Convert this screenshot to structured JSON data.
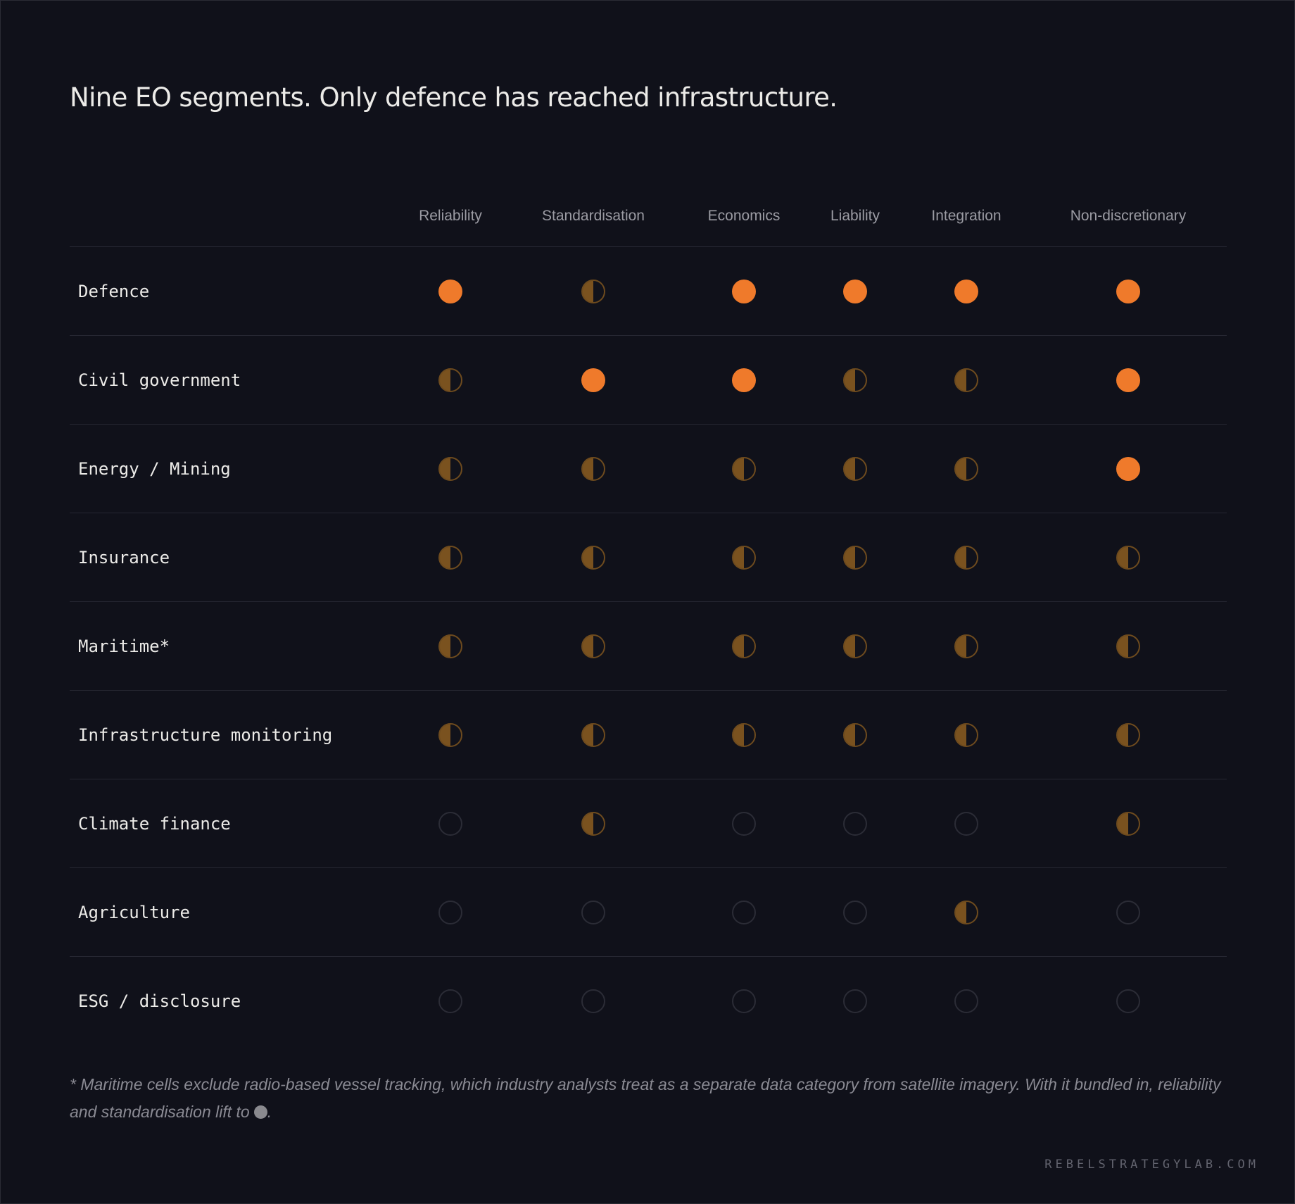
{
  "title": "Nine EO segments. Only defence has reached infrastructure.",
  "chart_data": {
    "type": "table",
    "title": "Nine EO segments. Only defence has reached infrastructure.",
    "columns": [
      "Reliability",
      "Standardisation",
      "Economics",
      "Liability",
      "Integration",
      "Non-discretionary"
    ],
    "levels": [
      "none",
      "partial",
      "full"
    ],
    "rows": [
      {
        "label": "Defence",
        "values": [
          "full",
          "partial",
          "full",
          "full",
          "full",
          "full"
        ]
      },
      {
        "label": "Civil government",
        "values": [
          "partial",
          "full",
          "full",
          "partial",
          "partial",
          "full"
        ]
      },
      {
        "label": "Energy / Mining",
        "values": [
          "partial",
          "partial",
          "partial",
          "partial",
          "partial",
          "full"
        ]
      },
      {
        "label": "Insurance",
        "values": [
          "partial",
          "partial",
          "partial",
          "partial",
          "partial",
          "partial"
        ]
      },
      {
        "label": "Maritime*",
        "values": [
          "partial",
          "partial",
          "partial",
          "partial",
          "partial",
          "partial"
        ]
      },
      {
        "label": "Infrastructure monitoring",
        "values": [
          "partial",
          "partial",
          "partial",
          "partial",
          "partial",
          "partial"
        ]
      },
      {
        "label": "Climate finance",
        "values": [
          "none",
          "partial",
          "none",
          "none",
          "none",
          "partial"
        ]
      },
      {
        "label": "Agriculture",
        "values": [
          "none",
          "none",
          "none",
          "none",
          "partial",
          "none"
        ]
      },
      {
        "label": "ESG / disclosure",
        "values": [
          "none",
          "none",
          "none",
          "none",
          "none",
          "none"
        ]
      }
    ],
    "colors": {
      "full": "#ef7a2b",
      "partial": "#7a521f",
      "none": "#2b2c36",
      "background": "#10111a"
    }
  },
  "footnote": {
    "text": "* Maritime cells exclude radio-based vessel tracking, which industry analysts treat as a separate data category from satellite imagery. With it bundled in, reliability and standardisation lift to",
    "suffix": "."
  },
  "brand": "REBELSTRATEGYLAB.COM"
}
